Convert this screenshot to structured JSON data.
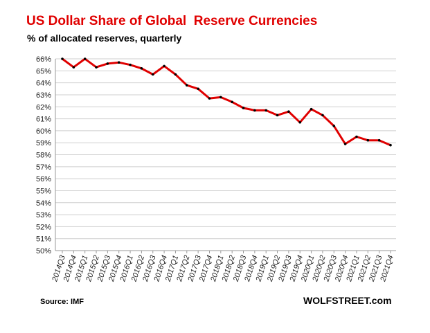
{
  "chart_data": {
    "type": "line",
    "title": "US Dollar Share of Global  Reserve Currencies",
    "subtitle": "% of allocated reserves, quarterly",
    "source": "Source: IMF",
    "brand": "WOLFSTREET.com",
    "xlabel": "",
    "ylabel": "",
    "ylim": [
      50,
      66
    ],
    "yticks": [
      "50%",
      "51%",
      "52%",
      "53%",
      "54%",
      "55%",
      "56%",
      "57%",
      "58%",
      "59%",
      "60%",
      "61%",
      "62%",
      "63%",
      "64%",
      "65%",
      "66%"
    ],
    "grid": true,
    "categories": [
      "2014Q3",
      "2014Q4",
      "2015Q1",
      "2015Q2",
      "2015Q3",
      "2015Q4",
      "2016Q1",
      "2016Q2",
      "2016Q3",
      "2016Q4",
      "2017Q1",
      "2017Q2",
      "2017Q3",
      "2017Q4",
      "2018Q1",
      "2018Q2",
      "2018Q3",
      "2018Q4",
      "2019Q1",
      "2019Q2",
      "2019Q3",
      "2019Q4",
      "2020Q1",
      "2020Q2",
      "2020Q3",
      "2020Q4",
      "2021Q1",
      "2021Q2",
      "2021Q3",
      "2021Q4"
    ],
    "series": [
      {
        "name": "USD share",
        "color": "#e00000",
        "marker_color": "#000000",
        "values": [
          66.0,
          65.3,
          66.0,
          65.3,
          65.6,
          65.7,
          65.5,
          65.2,
          64.7,
          65.4,
          64.7,
          63.8,
          63.5,
          62.7,
          62.8,
          62.4,
          61.9,
          61.7,
          61.7,
          61.3,
          61.6,
          60.7,
          61.8,
          61.3,
          60.4,
          58.9,
          59.5,
          59.2,
          59.2,
          58.8
        ]
      }
    ]
  }
}
